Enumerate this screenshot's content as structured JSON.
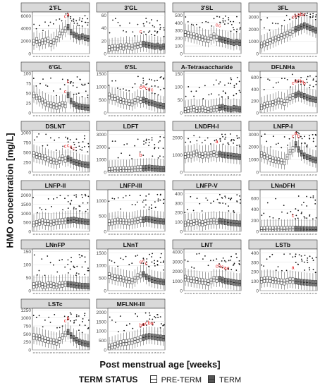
{
  "chart_data": {
    "type": "boxplot",
    "ylabel": "HMO concentration [mg/L]",
    "xlabel": "Post menstrual age [weeks]",
    "x_weeks": [
      29,
      30,
      31,
      32,
      33,
      34,
      35,
      36,
      37,
      38,
      39,
      40,
      41,
      42,
      43,
      44,
      45,
      46,
      47,
      48
    ],
    "legend": {
      "title": "TERM STATUS",
      "entries": [
        {
          "label": "PRE-TERM",
          "fill": "#ffffff"
        },
        {
          "label": "TERM",
          "fill": "#595959"
        }
      ]
    },
    "panels": [
      {
        "name": "2'FL",
        "yticks": [
          0,
          2000,
          4000,
          6000
        ],
        "ylim": [
          0,
          6600
        ],
        "preterm": [
          1800,
          2100,
          1700,
          1900,
          2000,
          2200,
          1600,
          1900,
          2300,
          3000,
          3400,
          3800
        ],
        "term": [
          4200,
          3400,
          3000,
          2800,
          2600,
          2700,
          2500,
          2400
        ],
        "letters": [
          "c",
          "a"
        ]
      },
      {
        "name": "3'GL",
        "yticks": [
          0,
          20,
          40,
          60
        ],
        "ylim": [
          0,
          65
        ],
        "preterm": [
          8,
          9,
          10,
          9,
          11,
          10,
          12,
          11,
          10,
          12,
          13,
          14
        ],
        "term": [
          15,
          14,
          13,
          12,
          11,
          12,
          10,
          11
        ],
        "letters": [
          "c"
        ]
      },
      {
        "name": "3'SL",
        "yticks": [
          0,
          100,
          200,
          300,
          400,
          500
        ],
        "ylim": [
          0,
          540
        ],
        "preterm": [
          260,
          250,
          240,
          230,
          220,
          210,
          200,
          190,
          180,
          210,
          230,
          200
        ],
        "term": [
          190,
          180,
          170,
          160,
          150,
          140,
          150,
          140
        ],
        "letters": [
          "c",
          "c"
        ]
      },
      {
        "name": "3FL",
        "yticks": [
          0,
          1000,
          2000,
          3000
        ],
        "ylim": [
          0,
          3400
        ],
        "preterm": [
          700,
          800,
          900,
          1000,
          1100,
          1200,
          1300,
          1400,
          1500,
          1600,
          1700,
          1900
        ],
        "term": [
          2000,
          2100,
          2200,
          2300,
          2200,
          2100,
          2000,
          1900
        ],
        "letters": [
          "c",
          "b",
          "a",
          "b",
          "c"
        ]
      },
      {
        "name": "6'GL",
        "yticks": [
          0,
          25,
          50,
          75,
          100
        ],
        "ylim": [
          0,
          105
        ],
        "preterm": [
          45,
          40,
          35,
          30,
          25,
          22,
          20,
          18,
          16,
          18,
          22,
          20
        ],
        "term": [
          45,
          30,
          22,
          18,
          16,
          15,
          14,
          13
        ],
        "letters": [
          "c",
          "c"
        ]
      },
      {
        "name": "6'SL",
        "yticks": [
          0,
          500,
          1000,
          1500
        ],
        "ylim": [
          0,
          1600
        ],
        "preterm": [
          650,
          600,
          580,
          520,
          480,
          450,
          420,
          400,
          380,
          450,
          520,
          480
        ],
        "term": [
          500,
          450,
          400,
          380,
          340,
          300,
          280,
          260
        ],
        "letters": [
          "c",
          "a",
          "c",
          "c",
          "c"
        ]
      },
      {
        "name": "A-Tetrasaccharide",
        "yticks": [
          0,
          50,
          100,
          150
        ],
        "ylim": [
          0,
          160
        ],
        "preterm": [
          10,
          12,
          15,
          18,
          12,
          14,
          16,
          12,
          10,
          14,
          16,
          18
        ],
        "term": [
          20,
          22,
          18,
          16,
          14,
          18,
          16,
          14
        ],
        "letters": []
      },
      {
        "name": "DFLNHa",
        "yticks": [
          0,
          200,
          400,
          600
        ],
        "ylim": [
          0,
          700
        ],
        "preterm": [
          100,
          120,
          140,
          150,
          160,
          180,
          200,
          190,
          170,
          220,
          260,
          280
        ],
        "term": [
          300,
          320,
          300,
          280,
          260,
          240,
          230,
          220
        ],
        "letters": [
          "c",
          "b",
          "c",
          "b",
          "b"
        ]
      },
      {
        "name": "DSLNT",
        "yticks": [
          0,
          250,
          500,
          750,
          1000
        ],
        "ylim": [
          0,
          1050
        ],
        "preterm": [
          450,
          420,
          400,
          380,
          360,
          330,
          300,
          280,
          260,
          300,
          360,
          320
        ],
        "term": [
          340,
          300,
          260,
          240,
          220,
          200,
          190,
          180
        ],
        "letters": [
          "c",
          "c",
          "c",
          "c"
        ]
      },
      {
        "name": "LDFT",
        "yticks": [
          0,
          1000,
          2000,
          3000
        ],
        "ylim": [
          0,
          3300
        ],
        "preterm": [
          150,
          160,
          180,
          170,
          200,
          220,
          190,
          210,
          230,
          250,
          280,
          300
        ],
        "term": [
          300,
          320,
          340,
          310,
          290,
          280,
          260,
          250
        ],
        "letters": [
          "b"
        ]
      },
      {
        "name": "LNDFH-I",
        "yticks": [
          0,
          1000,
          2000
        ],
        "ylim": [
          0,
          2400
        ],
        "preterm": [
          950,
          1000,
          980,
          1050,
          1100,
          1000,
          960,
          1020,
          980,
          1040,
          1080,
          1000
        ],
        "term": [
          1050,
          1000,
          980,
          960,
          940,
          920,
          900,
          880
        ],
        "letters": [
          "a"
        ]
      },
      {
        "name": "LNFP-I",
        "yticks": [
          0,
          1000,
          2000,
          3000
        ],
        "ylim": [
          0,
          3300
        ],
        "preterm": [
          1400,
          1300,
          1200,
          1100,
          1000,
          950,
          900,
          850,
          800,
          1200,
          1600,
          1800
        ],
        "term": [
          2200,
          1800,
          1500,
          1300,
          1200,
          1100,
          1000,
          950
        ],
        "letters": [
          "c",
          "a",
          "b"
        ]
      },
      {
        "name": "LNFP-II",
        "yticks": [
          0,
          500,
          1000,
          1500,
          2000
        ],
        "ylim": [
          0,
          2300
        ],
        "preterm": [
          400,
          450,
          500,
          550,
          500,
          480,
          460,
          500,
          520,
          540,
          560,
          580
        ],
        "term": [
          600,
          620,
          640,
          600,
          580,
          560,
          540,
          520
        ],
        "letters": []
      },
      {
        "name": "LNFP-III",
        "yticks": [
          0,
          500,
          1000
        ],
        "ylim": [
          0,
          1350
        ],
        "preterm": [
          280,
          300,
          320,
          340,
          330,
          320,
          310,
          300,
          320,
          340,
          360,
          380
        ],
        "term": [
          380,
          400,
          390,
          370,
          350,
          340,
          330,
          320
        ],
        "letters": []
      },
      {
        "name": "LNFP-V",
        "yticks": [
          0,
          100,
          200,
          300,
          400
        ],
        "ylim": [
          0,
          440
        ],
        "preterm": [
          80,
          90,
          85,
          95,
          100,
          90,
          85,
          95,
          100,
          105,
          110,
          100
        ],
        "term": [
          110,
          105,
          100,
          95,
          90,
          88,
          85,
          82
        ],
        "letters": []
      },
      {
        "name": "LNnDFH",
        "yticks": [
          0,
          200,
          400,
          600
        ],
        "ylim": [
          0,
          750
        ],
        "preterm": [
          30,
          35,
          40,
          38,
          36,
          40,
          42,
          38,
          36,
          40,
          42,
          44
        ],
        "term": [
          45,
          42,
          40,
          38,
          36,
          35,
          34,
          33
        ],
        "letters": [
          "c"
        ]
      },
      {
        "name": "LNnFP",
        "yticks": [
          0,
          50,
          100,
          150
        ],
        "ylim": [
          0,
          160
        ],
        "preterm": [
          20,
          22,
          25,
          20,
          18,
          22,
          24,
          20,
          18,
          22,
          24,
          26
        ],
        "term": [
          25,
          24,
          22,
          20,
          19,
          18,
          18,
          17
        ],
        "letters": []
      },
      {
        "name": "LNnT",
        "yticks": [
          0,
          500,
          1000,
          1500
        ],
        "ylim": [
          0,
          1650
        ],
        "preterm": [
          600,
          550,
          520,
          500,
          480,
          450,
          420,
          400,
          380,
          450,
          560,
          620
        ],
        "term": [
          650,
          550,
          480,
          430,
          400,
          380,
          360,
          340
        ],
        "letters": [
          "c",
          "c",
          "c"
        ]
      },
      {
        "name": "LNT",
        "yticks": [
          0,
          1000,
          2000,
          3000,
          4000
        ],
        "ylim": [
          0,
          4300
        ],
        "preterm": [
          1300,
          1200,
          1150,
          1100,
          1050,
          1000,
          950,
          900,
          850,
          1000,
          1200,
          1150
        ],
        "term": [
          1200,
          1100,
          1000,
          950,
          900,
          850,
          800,
          780
        ],
        "letters": [
          "c",
          "b",
          "c",
          "a",
          "c"
        ]
      },
      {
        "name": "LSTb",
        "yticks": [
          0,
          100,
          200,
          300,
          400
        ],
        "ylim": [
          0,
          440
        ],
        "preterm": [
          110,
          115,
          120,
          115,
          110,
          105,
          100,
          95,
          90,
          100,
          110,
          105
        ],
        "term": [
          100,
          95,
          90,
          88,
          85,
          82,
          80,
          78
        ],
        "letters": [
          "a"
        ]
      },
      {
        "name": "LSTc",
        "yticks": [
          0,
          250,
          500,
          750,
          1000,
          1250
        ],
        "ylim": [
          0,
          1300
        ],
        "preterm": [
          420,
          400,
          380,
          350,
          320,
          300,
          280,
          260,
          240,
          300,
          420,
          500
        ],
        "term": [
          560,
          450,
          360,
          300,
          250,
          220,
          200,
          180
        ],
        "letters": [
          "c",
          "b"
        ]
      },
      {
        "name": "MFLNH-III",
        "yticks": [
          0,
          500,
          1000,
          1500,
          2000
        ],
        "ylim": [
          0,
          2200
        ],
        "preterm": [
          150,
          200,
          250,
          300,
          350,
          380,
          400,
          420,
          450,
          500,
          550,
          600
        ],
        "term": [
          650,
          700,
          720,
          700,
          680,
          660,
          640,
          620
        ],
        "letters": [
          "b",
          "a",
          "c",
          "b",
          "a"
        ]
      }
    ]
  }
}
